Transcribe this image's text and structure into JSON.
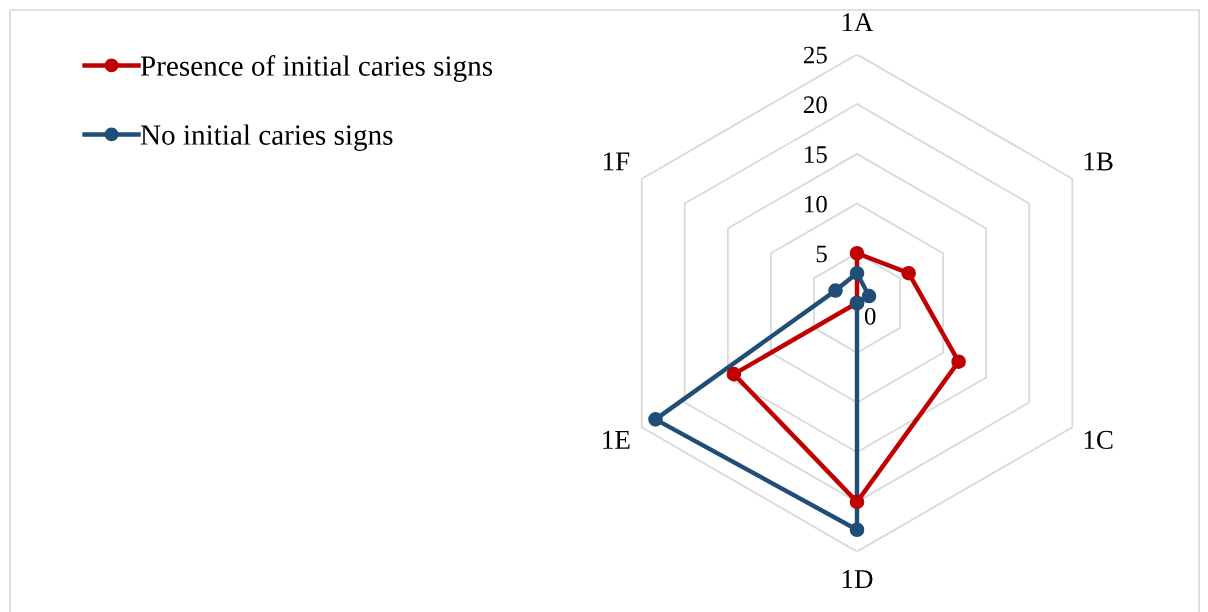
{
  "chart_data": {
    "type": "radar",
    "categories": [
      "1A",
      "1B",
      "1C",
      "1D",
      "1E",
      "1F"
    ],
    "series": [
      {
        "name": "Presence of initial caries signs",
        "color": "#c00000",
        "values": [
          5,
          6,
          11.8,
          20,
          14.3,
          0
        ]
      },
      {
        "name": "No initial caries signs",
        "color": "#1f4e79",
        "values": [
          3,
          1.4,
          0,
          22.8,
          23.4,
          2.5
        ]
      }
    ],
    "ylim": [
      0,
      25
    ],
    "yticks": [
      0,
      5,
      10,
      15,
      20,
      25
    ],
    "grid": true,
    "legend": "top left",
    "marker": "circle",
    "line_style": "solid"
  }
}
